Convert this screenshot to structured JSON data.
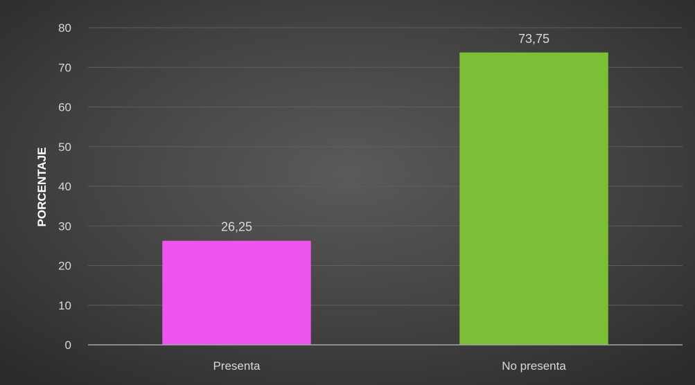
{
  "chart_data": {
    "type": "bar",
    "title": "",
    "xlabel": "",
    "ylabel": "PORCENTAJE",
    "categories": [
      "Presenta",
      "No presenta"
    ],
    "values": [
      26.25,
      73.75
    ],
    "data_labels": [
      "26,25",
      "73,75"
    ],
    "bar_colors": [
      "#ee55ee",
      "#7cbe35"
    ],
    "ylim": [
      0,
      80
    ],
    "y_ticks": [
      0,
      10,
      20,
      30,
      40,
      50,
      60,
      70,
      80
    ],
    "grid": true,
    "legend": "none",
    "background": "#404040"
  }
}
